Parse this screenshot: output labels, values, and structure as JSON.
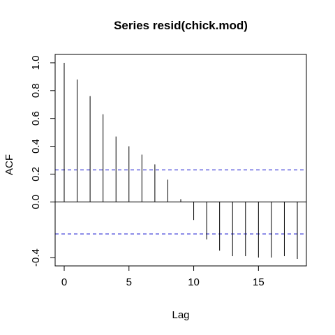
{
  "chart_data": {
    "type": "bar",
    "title": "Series  resid(chick.mod)",
    "xlabel": "Lag",
    "ylabel": "ACF",
    "xlim": [
      -0.7,
      18.7
    ],
    "ylim": [
      -0.46,
      1.06
    ],
    "x_ticks": [
      0,
      5,
      10,
      15
    ],
    "y_ticks": [
      -0.4,
      0.0,
      0.2,
      0.4,
      0.6,
      0.8,
      1.0
    ],
    "y_tick_labels": [
      "-0.4",
      "0.0",
      "0.2",
      "0.4",
      "0.6",
      "0.8",
      "1.0"
    ],
    "lags": [
      0,
      1,
      2,
      3,
      4,
      5,
      6,
      7,
      8,
      9,
      10,
      11,
      12,
      13,
      14,
      15,
      16,
      17,
      18
    ],
    "acf": [
      1.0,
      0.88,
      0.76,
      0.63,
      0.47,
      0.4,
      0.34,
      0.27,
      0.16,
      0.02,
      -0.13,
      -0.27,
      -0.35,
      -0.39,
      -0.39,
      -0.4,
      -0.4,
      -0.39,
      -0.41
    ],
    "confidence_bounds": [
      0.23,
      -0.23
    ],
    "colors": {
      "bars": "#000000",
      "bounds": "#0000cc",
      "zero_line": "#000000"
    },
    "grid": false
  }
}
